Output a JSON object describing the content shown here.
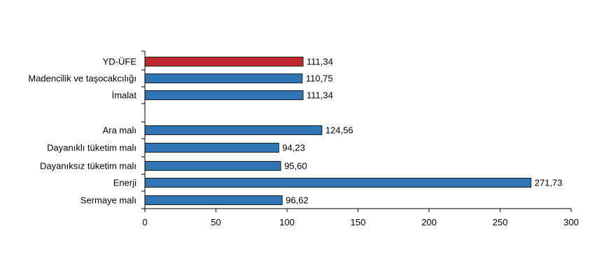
{
  "chart_data": {
    "type": "bar",
    "orientation": "horizontal",
    "title": "",
    "xlabel": "",
    "ylabel": "",
    "xlim": [
      0,
      300
    ],
    "x_ticks": [
      0,
      50,
      100,
      150,
      200,
      250,
      300
    ],
    "x_tick_labels": [
      "0",
      "50",
      "100",
      "150",
      "200",
      "250",
      "300"
    ],
    "grid": false,
    "legend": "none",
    "categories": [
      "YD-ÜFE",
      "Madencilik ve taşocakcılığı",
      "İmalat",
      "Ara malı",
      "Dayanıklı tüketim malı",
      "Dayanıksız tüketim malı",
      "Enerji",
      "Sermaye malı"
    ],
    "values": [
      111.34,
      110.75,
      111.34,
      124.56,
      94.23,
      95.6,
      271.73,
      96.62
    ],
    "value_labels": [
      "111,34",
      "110,75",
      "111,34",
      "124,56",
      "94,23",
      "95,60",
      "271,73",
      "96,62"
    ],
    "gap_after_index": 2,
    "colors": {
      "highlight": "#c0282e",
      "default": "#2e75b6",
      "bar_stroke": "#1f1f1f",
      "axis": "#000000"
    },
    "highlight_index": 0
  }
}
